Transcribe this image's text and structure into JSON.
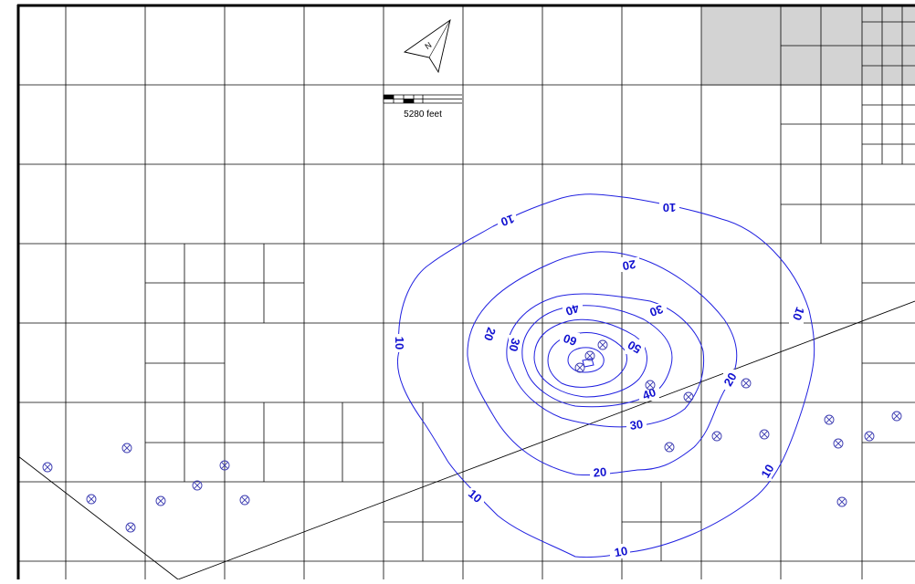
{
  "map": {
    "scale_label": "5280 feet",
    "north_arrow_letter": "N",
    "contour_color": "#2020e0",
    "shaded_section_color": "#d3d3d3",
    "contour_levels": [
      {
        "value": 10,
        "labels": [
          "10",
          "10",
          "10",
          "10",
          "10",
          "10",
          "10"
        ]
      },
      {
        "value": 20,
        "labels": [
          "20",
          "20",
          "20",
          "20"
        ]
      },
      {
        "value": 30,
        "labels": [
          "30",
          "30",
          "30"
        ]
      },
      {
        "value": 40,
        "labels": [
          "40",
          "40"
        ]
      },
      {
        "value": 50,
        "labels": [
          "50"
        ]
      },
      {
        "value": 60,
        "labels": [
          "60"
        ]
      }
    ],
    "well_symbol": "circle-x-icon",
    "well_count": 26
  }
}
